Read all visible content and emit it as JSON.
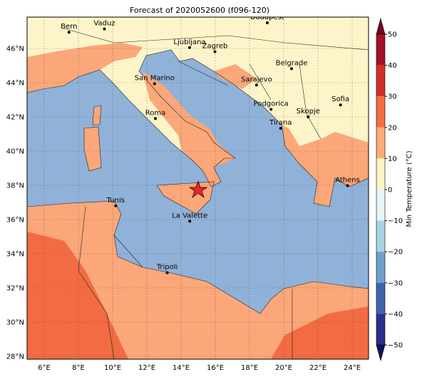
{
  "title": "Forecast of 2020052600 (f096-120)",
  "map": {
    "x_ticks": [
      "6°E",
      "8°E",
      "10°E",
      "12°E",
      "14°E",
      "16°E",
      "18°E",
      "20°E",
      "22°E",
      "24°E"
    ],
    "y_ticks": [
      "28°N",
      "30°N",
      "32°N",
      "34°N",
      "36°N",
      "38°N",
      "40°N",
      "42°N",
      "44°N",
      "46°N"
    ],
    "cities": [
      "Bern",
      "Vaduz",
      "Budapest",
      "Ljubljana",
      "Zagreb",
      "Belgrade",
      "San Marino",
      "Sarajevo",
      "Roma",
      "Podgorica",
      "Skopje",
      "Sofia",
      "Tirana",
      "Athens",
      "Tunis",
      "La Valette",
      "Tripoli"
    ]
  },
  "colorbar": {
    "label": "Min Temperature (°C)",
    "ticks": [
      "50",
      "40",
      "30",
      "20",
      "10",
      "0",
      "−10",
      "−20",
      "−30",
      "−40",
      "−50"
    ]
  }
}
